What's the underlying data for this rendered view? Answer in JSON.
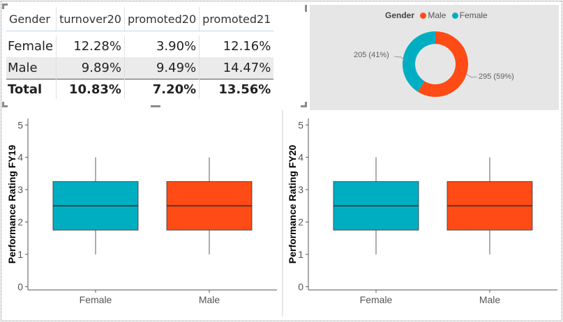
{
  "table": {
    "headers": [
      "Gender",
      "turnover20",
      "promoted20",
      "promoted21"
    ],
    "rows": [
      {
        "label": "Female",
        "cells": [
          "12.28%",
          "3.90%",
          "12.16%"
        ]
      },
      {
        "label": "Male",
        "cells": [
          "9.89%",
          "9.49%",
          "14.47%"
        ]
      }
    ],
    "total": {
      "label": "Total",
      "cells": [
        "10.83%",
        "7.20%",
        "13.56%"
      ]
    }
  },
  "colors": {
    "female": "#00aec2",
    "male": "#ff4b15",
    "background_panel": "#e6e6e6"
  },
  "chart_data": [
    {
      "type": "pie",
      "variant": "donut",
      "legend": {
        "title": "Gender",
        "position": "top"
      },
      "slices": [
        {
          "name": "Male",
          "value": 295,
          "label": "295 (59%)"
        },
        {
          "name": "Female",
          "value": 205,
          "label": "205 (41%)"
        }
      ]
    },
    {
      "type": "boxplot",
      "ylabel": "Performance Rating FY19",
      "categories": [
        "Female",
        "Male"
      ],
      "boxes": [
        {
          "min": 1,
          "q1": 1.75,
          "median": 2.5,
          "q3": 3.25,
          "max": 4
        },
        {
          "min": 1,
          "q1": 1.75,
          "median": 2.5,
          "q3": 3.25,
          "max": 4
        }
      ],
      "yticks": [
        "0",
        "1",
        "2",
        "3",
        "4",
        "5"
      ],
      "ylim": [
        -0.1,
        5.2
      ]
    },
    {
      "type": "boxplot",
      "ylabel": "Performance Rating FY20",
      "categories": [
        "Female",
        "Male"
      ],
      "boxes": [
        {
          "min": 1,
          "q1": 1.75,
          "median": 2.5,
          "q3": 3.25,
          "max": 4
        },
        {
          "min": 1,
          "q1": 1.75,
          "median": 2.5,
          "q3": 3.25,
          "max": 4
        }
      ],
      "yticks": [
        "0",
        "1",
        "2",
        "3",
        "4",
        "5"
      ],
      "ylim": [
        -0.1,
        5.2
      ]
    }
  ]
}
